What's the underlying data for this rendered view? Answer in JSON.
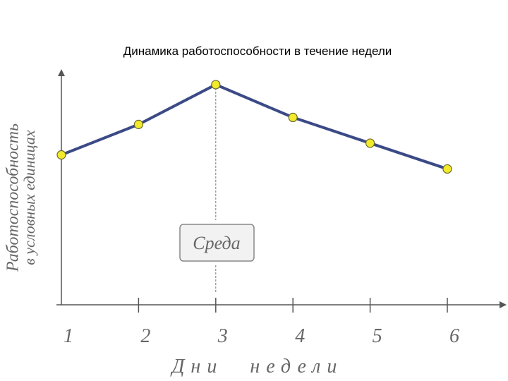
{
  "chart_data": {
    "type": "line",
    "title": "Динамика работоспособности в течение недели",
    "y_label": [
      "Работоспособность",
      "в условных единицах"
    ],
    "x_label": "Дни недели",
    "annotation": "Среда",
    "categories": [
      "1",
      "2",
      "3",
      "4",
      "5",
      "6"
    ],
    "values": [
      64,
      77,
      94,
      80,
      69,
      58
    ],
    "color": "#3b4a86",
    "marker_color": "#f2ea2a",
    "ylim": [
      0,
      100
    ]
  }
}
